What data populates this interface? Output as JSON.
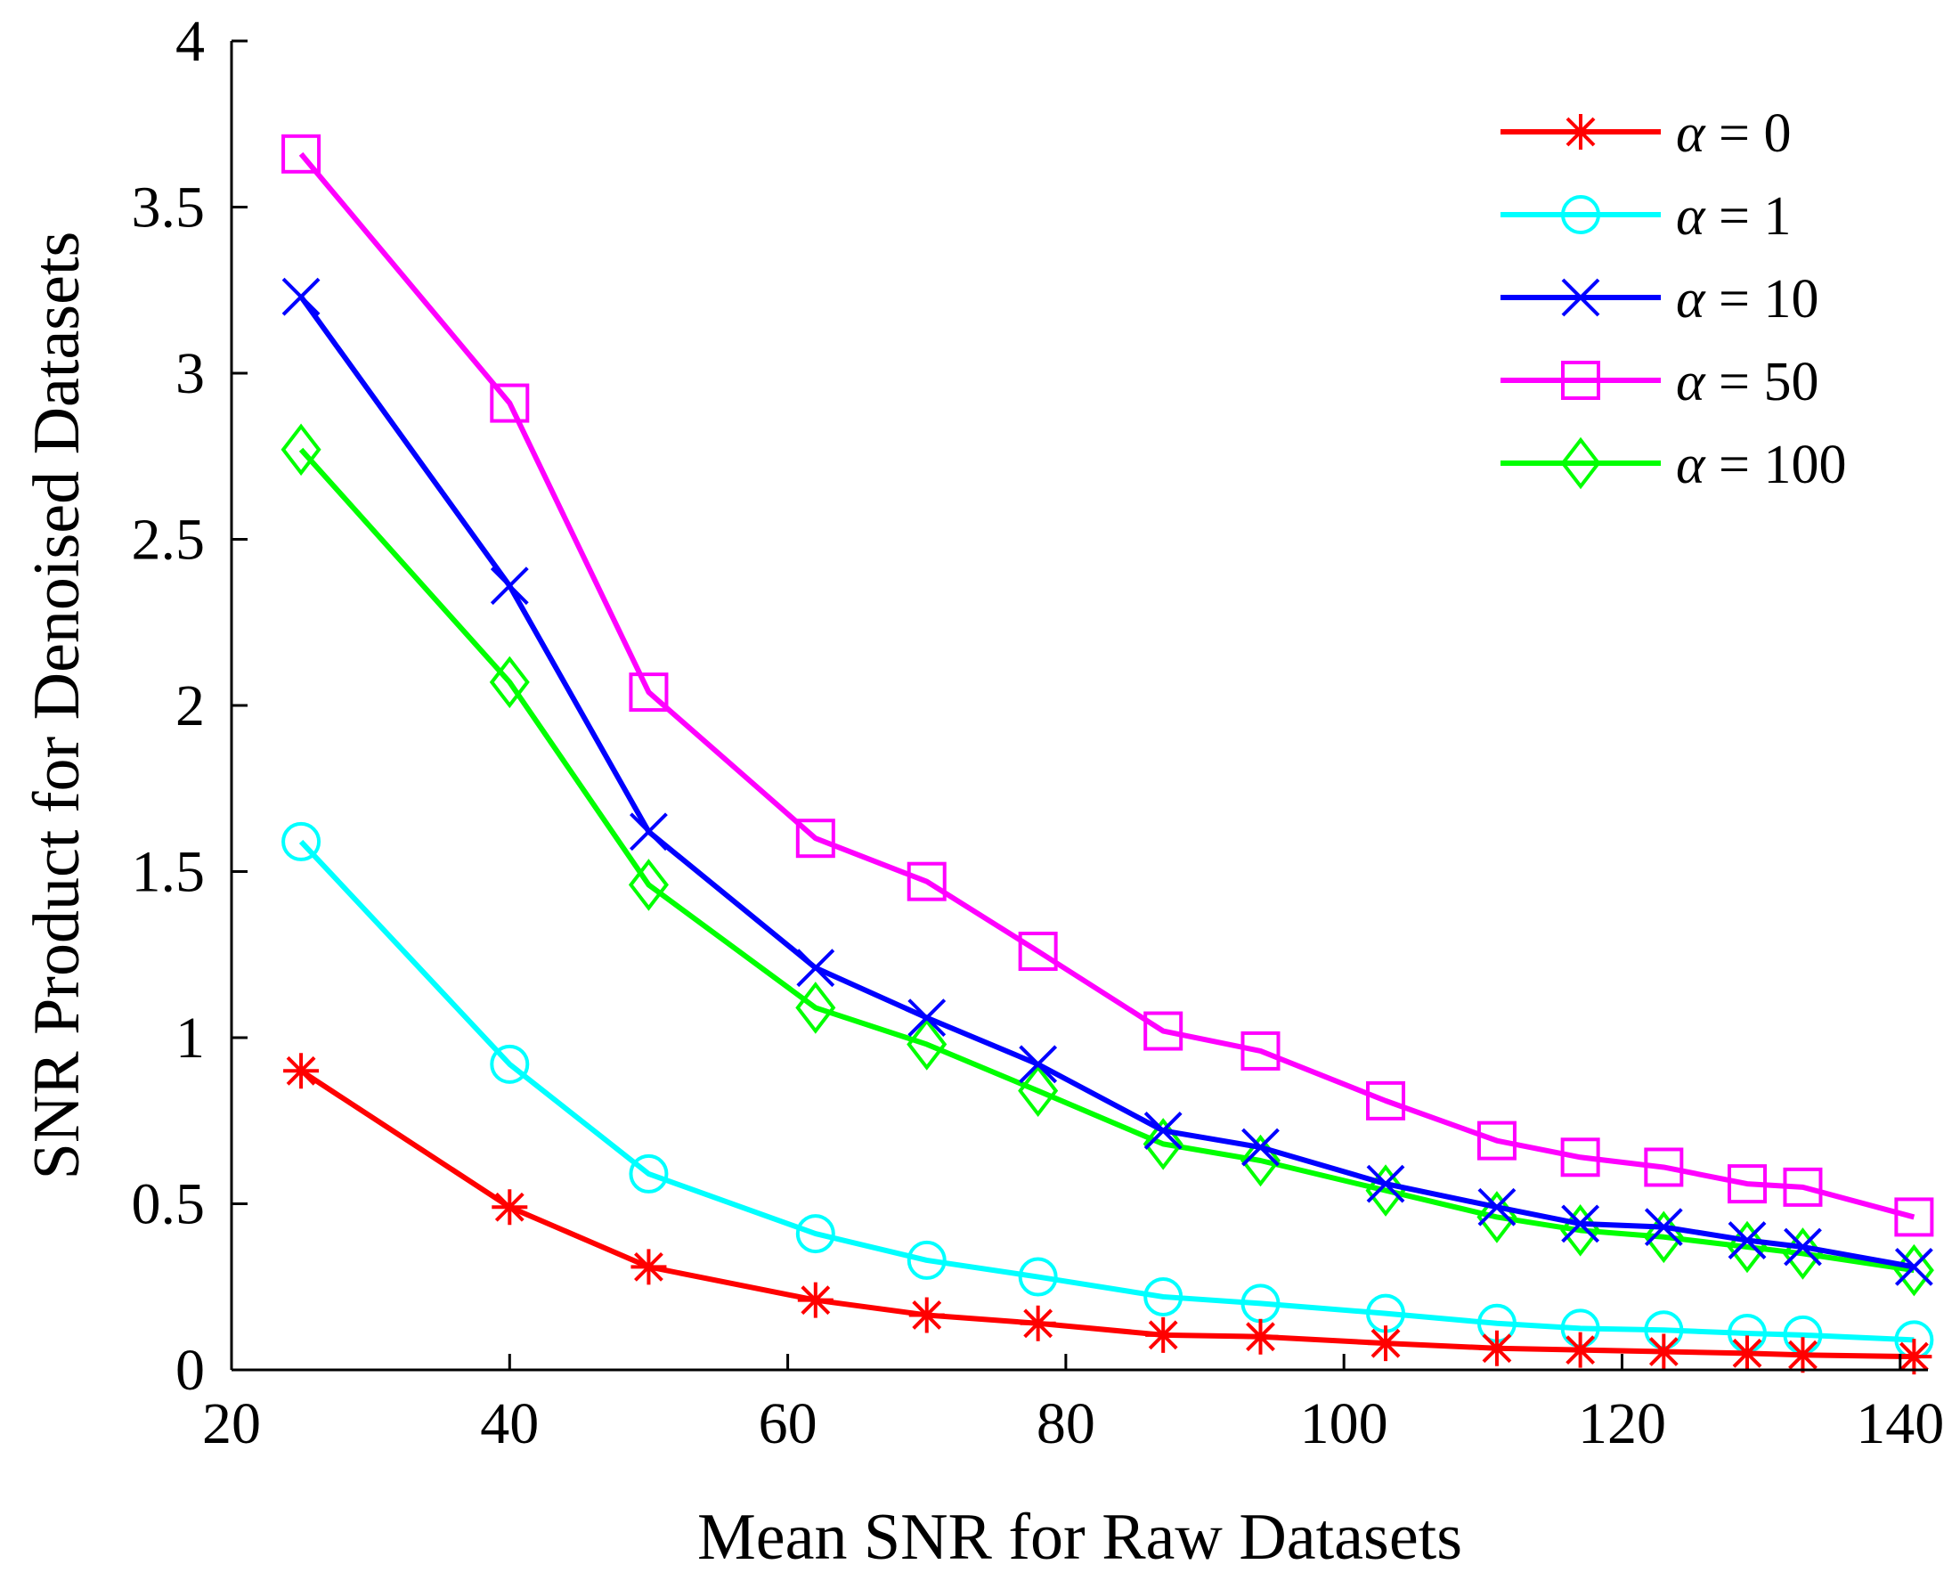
{
  "chart_data": {
    "type": "line",
    "title": "",
    "xlabel": "Mean SNR for Raw Datasets",
    "ylabel": "SNR Product for Denoised Datasets",
    "xlim": [
      20,
      142
    ],
    "ylim": [
      0,
      4
    ],
    "xticks": [
      20,
      40,
      60,
      80,
      100,
      120,
      140
    ],
    "yticks": [
      0,
      0.5,
      1,
      1.5,
      2,
      2.5,
      3,
      3.5,
      4
    ],
    "xtick_labels": [
      "20",
      "40",
      "60",
      "80",
      "100",
      "120",
      "140"
    ],
    "ytick_labels": [
      "0",
      "0.5",
      "1",
      "1.5",
      "2",
      "2.5",
      "3",
      "3.5",
      "4"
    ],
    "grid": false,
    "legend_position": "top-right",
    "x": [
      25,
      40,
      50,
      62,
      70,
      78,
      87,
      94,
      103,
      111,
      117,
      123,
      129,
      133,
      141
    ],
    "series": [
      {
        "name": "α = 0",
        "alpha_symbol": "α",
        "alpha_value": "= 0",
        "color": "#ff0000",
        "marker": "asterisk",
        "values": [
          0.9,
          0.49,
          0.31,
          0.21,
          0.165,
          0.14,
          0.105,
          0.1,
          0.08,
          0.065,
          0.06,
          0.055,
          0.05,
          0.045,
          0.04
        ]
      },
      {
        "name": "α = 1",
        "alpha_symbol": "α",
        "alpha_value": "= 1",
        "color": "#00ffff",
        "marker": "circle",
        "values": [
          1.59,
          0.92,
          0.59,
          0.41,
          0.33,
          0.28,
          0.22,
          0.2,
          0.17,
          0.14,
          0.125,
          0.12,
          0.11,
          0.105,
          0.09
        ]
      },
      {
        "name": "α = 10",
        "alpha_symbol": "α",
        "alpha_value": "= 10",
        "color": "#0000ff",
        "marker": "x",
        "values": [
          3.23,
          2.36,
          1.62,
          1.21,
          1.06,
          0.92,
          0.72,
          0.67,
          0.56,
          0.49,
          0.44,
          0.43,
          0.39,
          0.37,
          0.31
        ]
      },
      {
        "name": "α = 50",
        "alpha_symbol": "α",
        "alpha_value": "= 50",
        "color": "#ff00ff",
        "marker": "square",
        "values": [
          3.66,
          2.91,
          2.04,
          1.6,
          1.47,
          1.26,
          1.02,
          0.96,
          0.81,
          0.69,
          0.64,
          0.61,
          0.56,
          0.55,
          0.46
        ]
      },
      {
        "name": "α = 100",
        "alpha_symbol": "α",
        "alpha_value": "= 100",
        "color": "#00ff00",
        "marker": "diamond",
        "values": [
          2.77,
          2.07,
          1.46,
          1.09,
          0.98,
          0.84,
          0.68,
          0.63,
          0.54,
          0.46,
          0.42,
          0.4,
          0.37,
          0.35,
          0.3
        ]
      }
    ]
  }
}
